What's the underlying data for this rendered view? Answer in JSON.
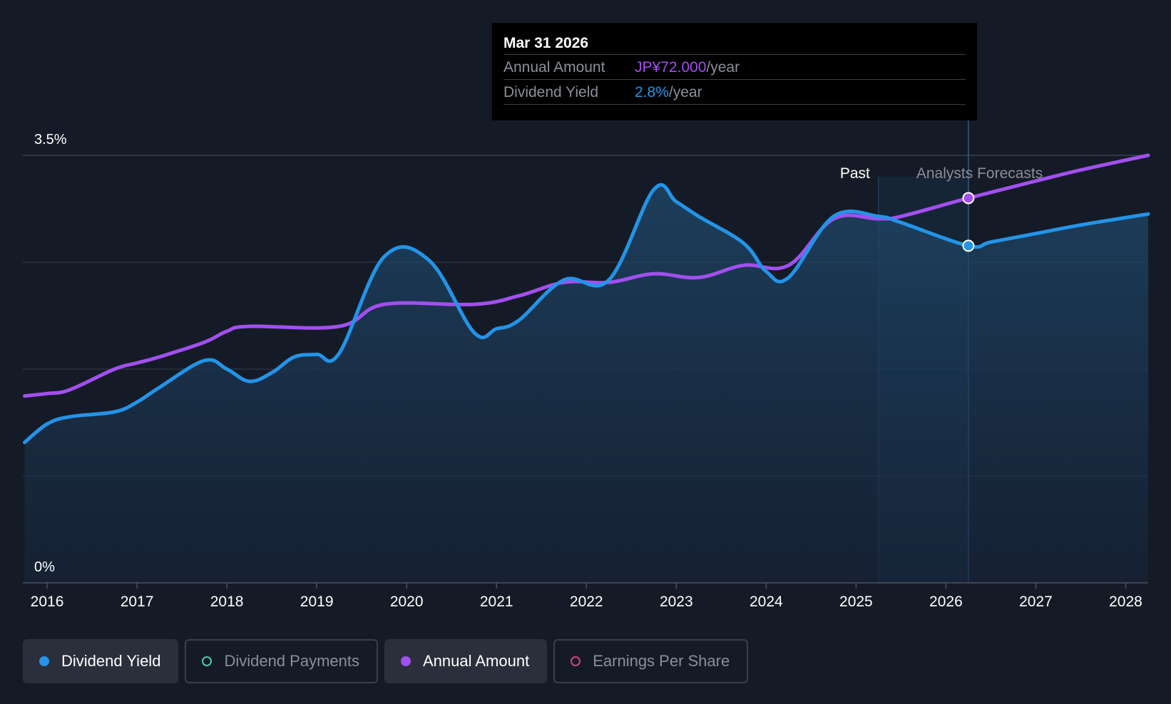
{
  "tooltip": {
    "date": "Mar 31 2026",
    "annual_amount_label": "Annual Amount",
    "annual_amount_value": "JP¥72.000",
    "annual_amount_unit": "/year",
    "dividend_yield_label": "Dividend Yield",
    "dividend_yield_value": "2.8%",
    "dividend_yield_unit": "/year"
  },
  "regions": {
    "past_label": "Past",
    "forecast_label": "Analysts Forecasts"
  },
  "legend": [
    {
      "label": "Dividend Yield",
      "color": "#2394e8",
      "active": true
    },
    {
      "label": "Dividend Payments",
      "color": "#4ec9b8",
      "active": false
    },
    {
      "label": "Annual Amount",
      "color": "#a24ff0",
      "active": true
    },
    {
      "label": "Earnings Per Share",
      "color": "#d2457a",
      "active": false
    }
  ],
  "colors": {
    "background": "#151b26",
    "yield_line": "#2394e8",
    "amount_line": "#a24ff0",
    "grid": "#2b3240"
  },
  "chart_data": {
    "type": "line",
    "y_tick_labels": [
      "0%",
      "3.5%"
    ],
    "ylim": [
      0,
      3.5
    ],
    "x_tick_labels": [
      "2016",
      "2017",
      "2018",
      "2019",
      "2020",
      "2021",
      "2022",
      "2023",
      "2024",
      "2025",
      "2026",
      "2027",
      "2028"
    ],
    "xlim": [
      2015.73,
      2028.25
    ],
    "tooltip_x": 2026.25,
    "past_end_x": 2025.25,
    "series": [
      {
        "name": "Dividend Yield",
        "color": "#2394e8",
        "points": [
          [
            2015.75,
            1.15
          ],
          [
            2016.0,
            1.3
          ],
          [
            2016.25,
            1.36
          ],
          [
            2016.75,
            1.4
          ],
          [
            2017.0,
            1.48
          ],
          [
            2017.25,
            1.6
          ],
          [
            2017.75,
            1.82
          ],
          [
            2018.0,
            1.75
          ],
          [
            2018.25,
            1.65
          ],
          [
            2018.5,
            1.72
          ],
          [
            2018.75,
            1.85
          ],
          [
            2019.0,
            1.87
          ],
          [
            2019.25,
            1.88
          ],
          [
            2019.75,
            2.67
          ],
          [
            2020.25,
            2.64
          ],
          [
            2020.75,
            2.05
          ],
          [
            2021.0,
            2.08
          ],
          [
            2021.25,
            2.15
          ],
          [
            2021.75,
            2.48
          ],
          [
            2022.25,
            2.48
          ],
          [
            2022.75,
            3.22
          ],
          [
            2023.0,
            3.12
          ],
          [
            2023.25,
            3.0
          ],
          [
            2023.75,
            2.78
          ],
          [
            2024.0,
            2.55
          ],
          [
            2024.25,
            2.5
          ],
          [
            2024.75,
            3.0
          ],
          [
            2025.25,
            3.0
          ],
          [
            2025.5,
            2.95
          ],
          [
            2026.25,
            2.76
          ],
          [
            2026.5,
            2.79
          ],
          [
            2027.0,
            2.86
          ],
          [
            2027.5,
            2.93
          ],
          [
            2028.0,
            2.99
          ],
          [
            2028.25,
            3.02
          ]
        ]
      },
      {
        "name": "Annual Amount",
        "color": "#a24ff0",
        "points": [
          [
            2015.75,
            1.53
          ],
          [
            2016.0,
            1.55
          ],
          [
            2016.25,
            1.58
          ],
          [
            2016.75,
            1.75
          ],
          [
            2017.0,
            1.8
          ],
          [
            2017.25,
            1.85
          ],
          [
            2017.75,
            1.97
          ],
          [
            2018.0,
            2.06
          ],
          [
            2018.25,
            2.1
          ],
          [
            2019.25,
            2.1
          ],
          [
            2019.75,
            2.28
          ],
          [
            2020.75,
            2.28
          ],
          [
            2021.25,
            2.35
          ],
          [
            2021.75,
            2.46
          ],
          [
            2022.25,
            2.46
          ],
          [
            2022.75,
            2.53
          ],
          [
            2023.25,
            2.5
          ],
          [
            2023.75,
            2.6
          ],
          [
            2024.25,
            2.6
          ],
          [
            2024.75,
            2.98
          ],
          [
            2025.25,
            2.98
          ],
          [
            2025.5,
            3.0
          ],
          [
            2026.25,
            3.15
          ],
          [
            2027.0,
            3.29
          ],
          [
            2027.5,
            3.38
          ],
          [
            2028.25,
            3.5
          ]
        ]
      }
    ]
  }
}
